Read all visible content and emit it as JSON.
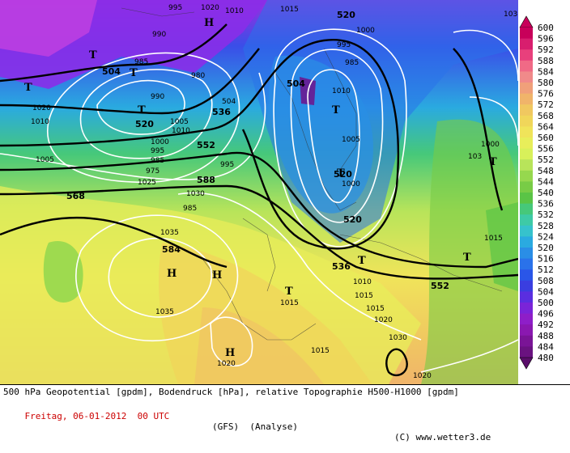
{
  "caption": {
    "line1": "500 hPa Geopotential [gpdm], Bodendruck [hPa], relative Topographie H500-H1000 [gpdm]",
    "date": "Freitag, 06-01-2012  00 UTC",
    "model": "(GFS)  (Analyse)",
    "copyright": "(C) www.wetter3.de"
  },
  "legend": {
    "values": [
      "600",
      "596",
      "592",
      "588",
      "584",
      "580",
      "576",
      "572",
      "568",
      "564",
      "560",
      "556",
      "552",
      "548",
      "544",
      "540",
      "536",
      "532",
      "528",
      "524",
      "520",
      "516",
      "512",
      "508",
      "504",
      "500",
      "496",
      "492",
      "488",
      "484",
      "480"
    ],
    "colors": [
      "#c8005a",
      "#d81e6e",
      "#e8407c",
      "#f06a86",
      "#f08a8a",
      "#f0a07a",
      "#f0b46a",
      "#f0c860",
      "#f0d65a",
      "#f0e45a",
      "#e8ee5a",
      "#d8f05a",
      "#b8e45a",
      "#96d84e",
      "#78cc46",
      "#5ac446",
      "#46c87a",
      "#3ecaa6",
      "#36c2cc",
      "#2aaae0",
      "#2a8ee6",
      "#2a72ea",
      "#2a56e8",
      "#3a3ee0",
      "#5a2ee0",
      "#7a24d8",
      "#8e1ec8",
      "#8a18b0",
      "#7a1496",
      "#6a1280",
      "#5a0e6a"
    ]
  },
  "pressure_labels": [
    "995",
    "990",
    "1020",
    "1010",
    "1015",
    "520",
    "1000",
    "995",
    "985",
    "504",
    "1010",
    "980",
    "985",
    "990",
    "1005",
    "1010",
    "1020",
    "1010",
    "1005",
    "1000",
    "995",
    "985",
    "975",
    "1025",
    "1030",
    "985",
    "1035",
    "1035",
    "995",
    "1000",
    "1005",
    "1010",
    "1015",
    "1015",
    "1020",
    "1030",
    "1020",
    "1015",
    "1015",
    "1020",
    "1000",
    "103"
  ],
  "height_labels": [
    "504",
    "520",
    "536",
    "552",
    "568",
    "588",
    "584",
    "504",
    "520",
    "536",
    "552",
    "520"
  ],
  "highs": [
    "H",
    "H",
    "H",
    "H"
  ],
  "lows": [
    "T",
    "T",
    "T",
    "T",
    "T",
    "T",
    "T",
    "T",
    "T",
    "T"
  ]
}
